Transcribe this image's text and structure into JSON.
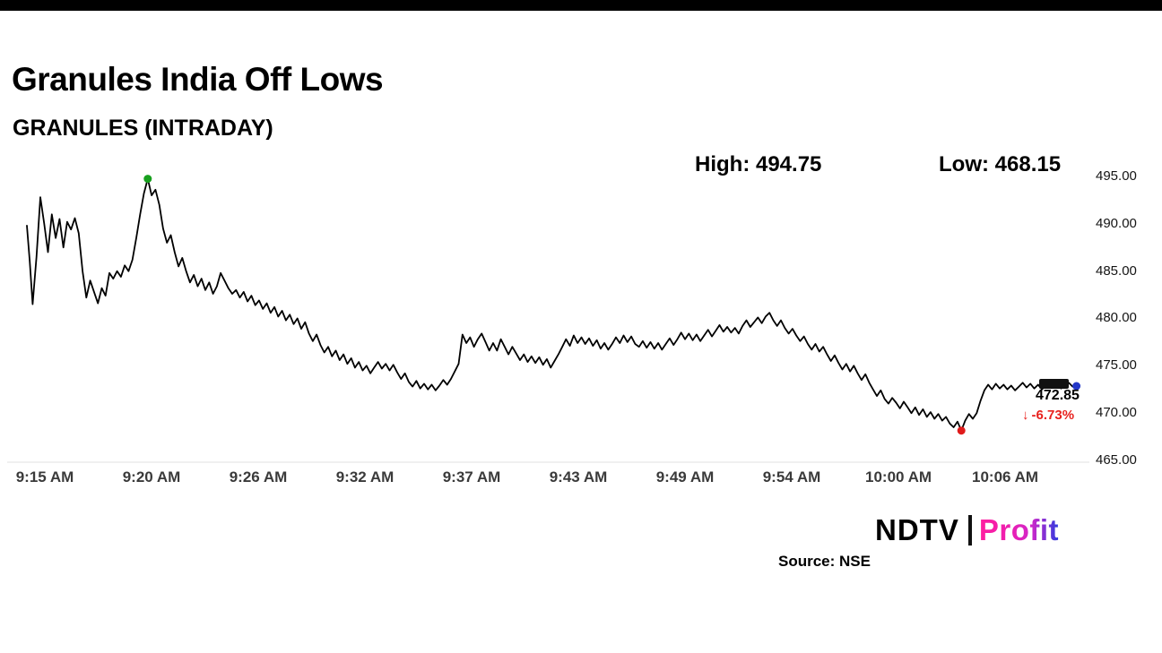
{
  "branding": {
    "ndtv": "NDTV",
    "separator": "|",
    "profit": "Profit"
  },
  "chart_data": {
    "type": "line",
    "title": "Granules India Off Lows",
    "subtitle": "GRANULES (INTRADAY)",
    "high_label": "High: 494.75",
    "low_label": "Low: 468.15",
    "high": 494.75,
    "low": 468.15,
    "last_price": 472.85,
    "last_price_text": "472.85",
    "change_arrow": "↓",
    "change_text": "-6.73%",
    "source": "Source: NSE",
    "line_color": "#000000",
    "change_color": "#e8211d",
    "ylim": [
      465,
      495
    ],
    "y_ticks": [
      "495.00",
      "490.00",
      "485.00",
      "480.00",
      "475.00",
      "470.00",
      "465.00"
    ],
    "x_ticks": [
      "9:15 AM",
      "9:20 AM",
      "9:26 AM",
      "9:32 AM",
      "9:37 AM",
      "9:43 AM",
      "9:49 AM",
      "9:54 AM",
      "10:00 AM",
      "10:06 AM"
    ],
    "x_unit": "minutes after 9:15 AM",
    "markers": [
      {
        "name": "high-point",
        "t": 6.3,
        "value": 494.75,
        "color": "#18a01e"
      },
      {
        "name": "low-point",
        "t": 48.7,
        "value": 468.15,
        "color": "#e01b1b"
      },
      {
        "name": "last-point",
        "t": 54.7,
        "value": 472.85,
        "color": "#2438c8"
      }
    ],
    "series": [
      {
        "name": "GRANULES",
        "points": [
          [
            0,
            489.8
          ],
          [
            0.15,
            486
          ],
          [
            0.3,
            481.5
          ],
          [
            0.5,
            486.5
          ],
          [
            0.7,
            492.8
          ],
          [
            0.9,
            490
          ],
          [
            1.1,
            487
          ],
          [
            1.3,
            491
          ],
          [
            1.5,
            488.5
          ],
          [
            1.7,
            490.5
          ],
          [
            1.9,
            487.5
          ],
          [
            2.1,
            490.2
          ],
          [
            2.3,
            489.4
          ],
          [
            2.5,
            490.6
          ],
          [
            2.7,
            489
          ],
          [
            2.9,
            485
          ],
          [
            3.1,
            482.2
          ],
          [
            3.3,
            484
          ],
          [
            3.5,
            482.8
          ],
          [
            3.7,
            481.6
          ],
          [
            3.9,
            483.2
          ],
          [
            4.1,
            482.4
          ],
          [
            4.3,
            484.8
          ],
          [
            4.5,
            484.2
          ],
          [
            4.7,
            485
          ],
          [
            4.9,
            484.4
          ],
          [
            5.1,
            485.6
          ],
          [
            5.3,
            485
          ],
          [
            5.5,
            486.2
          ],
          [
            5.7,
            488.5
          ],
          [
            5.9,
            491
          ],
          [
            6.1,
            493.2
          ],
          [
            6.3,
            494.75
          ],
          [
            6.5,
            493
          ],
          [
            6.7,
            493.6
          ],
          [
            6.9,
            492
          ],
          [
            7.1,
            489.5
          ],
          [
            7.3,
            488
          ],
          [
            7.5,
            488.8
          ],
          [
            7.7,
            487
          ],
          [
            7.9,
            485.5
          ],
          [
            8.1,
            486.4
          ],
          [
            8.3,
            485
          ],
          [
            8.5,
            483.8
          ],
          [
            8.7,
            484.6
          ],
          [
            8.9,
            483.4
          ],
          [
            9.1,
            484.2
          ],
          [
            9.3,
            483
          ],
          [
            9.5,
            483.8
          ],
          [
            9.7,
            482.6
          ],
          [
            9.9,
            483.4
          ],
          [
            10.1,
            484.8
          ],
          [
            10.3,
            484
          ],
          [
            10.5,
            483.2
          ],
          [
            10.7,
            482.6
          ],
          [
            10.9,
            483
          ],
          [
            11.1,
            482.2
          ],
          [
            11.3,
            482.8
          ],
          [
            11.5,
            481.8
          ],
          [
            11.7,
            482.4
          ],
          [
            11.9,
            481.4
          ],
          [
            12.1,
            481.9
          ],
          [
            12.3,
            481
          ],
          [
            12.5,
            481.6
          ],
          [
            12.7,
            480.6
          ],
          [
            12.9,
            481.2
          ],
          [
            13.1,
            480.2
          ],
          [
            13.3,
            480.8
          ],
          [
            13.5,
            479.8
          ],
          [
            13.7,
            480.4
          ],
          [
            13.9,
            479.4
          ],
          [
            14.1,
            480
          ],
          [
            14.3,
            478.9
          ],
          [
            14.5,
            479.6
          ],
          [
            14.7,
            478.4
          ],
          [
            14.9,
            477.6
          ],
          [
            15.1,
            478.3
          ],
          [
            15.3,
            477.2
          ],
          [
            15.5,
            476.4
          ],
          [
            15.7,
            477
          ],
          [
            15.9,
            476
          ],
          [
            16.1,
            476.6
          ],
          [
            16.3,
            475.6
          ],
          [
            16.5,
            476.2
          ],
          [
            16.7,
            475.2
          ],
          [
            16.9,
            475.8
          ],
          [
            17.1,
            474.8
          ],
          [
            17.3,
            475.4
          ],
          [
            17.5,
            474.5
          ],
          [
            17.7,
            475
          ],
          [
            17.9,
            474.2
          ],
          [
            18.1,
            474.8
          ],
          [
            18.3,
            475.4
          ],
          [
            18.5,
            474.7
          ],
          [
            18.7,
            475.2
          ],
          [
            18.9,
            474.5
          ],
          [
            19.1,
            475.1
          ],
          [
            19.3,
            474.3
          ],
          [
            19.5,
            473.6
          ],
          [
            19.7,
            474.2
          ],
          [
            19.9,
            473.3
          ],
          [
            20.1,
            472.8
          ],
          [
            20.3,
            473.4
          ],
          [
            20.5,
            472.6
          ],
          [
            20.7,
            473.1
          ],
          [
            20.9,
            472.5
          ],
          [
            21.1,
            473
          ],
          [
            21.3,
            472.4
          ],
          [
            21.5,
            472.9
          ],
          [
            21.7,
            473.5
          ],
          [
            21.9,
            473
          ],
          [
            22.1,
            473.6
          ],
          [
            22.3,
            474.4
          ],
          [
            22.5,
            475.2
          ],
          [
            22.7,
            478.3
          ],
          [
            22.9,
            477.4
          ],
          [
            23.1,
            478
          ],
          [
            23.3,
            477
          ],
          [
            23.5,
            477.8
          ],
          [
            23.7,
            478.4
          ],
          [
            23.9,
            477.5
          ],
          [
            24.1,
            476.6
          ],
          [
            24.3,
            477.4
          ],
          [
            24.5,
            476.6
          ],
          [
            24.7,
            477.8
          ],
          [
            24.9,
            477
          ],
          [
            25.1,
            476.2
          ],
          [
            25.3,
            477
          ],
          [
            25.5,
            476.3
          ],
          [
            25.7,
            475.6
          ],
          [
            25.9,
            476.2
          ],
          [
            26.1,
            475.4
          ],
          [
            26.3,
            476
          ],
          [
            26.5,
            475.3
          ],
          [
            26.7,
            475.9
          ],
          [
            26.9,
            475.1
          ],
          [
            27.1,
            475.7
          ],
          [
            27.3,
            474.8
          ],
          [
            27.5,
            475.5
          ],
          [
            27.7,
            476.2
          ],
          [
            27.9,
            477
          ],
          [
            28.1,
            477.8
          ],
          [
            28.3,
            477.1
          ],
          [
            28.5,
            478.2
          ],
          [
            28.7,
            477.4
          ],
          [
            28.9,
            478
          ],
          [
            29.1,
            477.3
          ],
          [
            29.3,
            477.9
          ],
          [
            29.5,
            477.1
          ],
          [
            29.7,
            477.7
          ],
          [
            29.9,
            476.8
          ],
          [
            30.1,
            477.4
          ],
          [
            30.3,
            476.7
          ],
          [
            30.5,
            477.3
          ],
          [
            30.7,
            478
          ],
          [
            30.9,
            477.4
          ],
          [
            31.1,
            478.2
          ],
          [
            31.3,
            477.5
          ],
          [
            31.5,
            478.1
          ],
          [
            31.7,
            477.3
          ],
          [
            31.9,
            477
          ],
          [
            32.1,
            477.6
          ],
          [
            32.3,
            476.9
          ],
          [
            32.5,
            477.5
          ],
          [
            32.7,
            476.8
          ],
          [
            32.9,
            477.4
          ],
          [
            33.1,
            476.7
          ],
          [
            33.3,
            477.3
          ],
          [
            33.5,
            477.9
          ],
          [
            33.7,
            477.2
          ],
          [
            33.9,
            477.8
          ],
          [
            34.1,
            478.5
          ],
          [
            34.3,
            477.8
          ],
          [
            34.5,
            478.4
          ],
          [
            34.7,
            477.7
          ],
          [
            34.9,
            478.3
          ],
          [
            35.1,
            477.6
          ],
          [
            35.3,
            478.2
          ],
          [
            35.5,
            478.8
          ],
          [
            35.7,
            478.1
          ],
          [
            35.9,
            478.7
          ],
          [
            36.1,
            479.3
          ],
          [
            36.3,
            478.6
          ],
          [
            36.5,
            479.1
          ],
          [
            36.7,
            478.5
          ],
          [
            36.9,
            479
          ],
          [
            37.1,
            478.4
          ],
          [
            37.3,
            479.2
          ],
          [
            37.5,
            479.8
          ],
          [
            37.7,
            479.1
          ],
          [
            37.9,
            479.6
          ],
          [
            38.1,
            480.1
          ],
          [
            38.3,
            479.5
          ],
          [
            38.5,
            480.2
          ],
          [
            38.7,
            480.6
          ],
          [
            38.9,
            479.8
          ],
          [
            39.1,
            479.2
          ],
          [
            39.3,
            479.8
          ],
          [
            39.5,
            479
          ],
          [
            39.7,
            478.4
          ],
          [
            39.9,
            478.9
          ],
          [
            40.1,
            478.2
          ],
          [
            40.3,
            477.6
          ],
          [
            40.5,
            478.1
          ],
          [
            40.7,
            477.3
          ],
          [
            40.9,
            476.7
          ],
          [
            41.1,
            477.3
          ],
          [
            41.3,
            476.5
          ],
          [
            41.5,
            477
          ],
          [
            41.7,
            476.2
          ],
          [
            41.9,
            475.5
          ],
          [
            42.1,
            476.1
          ],
          [
            42.3,
            475.3
          ],
          [
            42.5,
            474.6
          ],
          [
            42.7,
            475.2
          ],
          [
            42.9,
            474.4
          ],
          [
            43.1,
            475
          ],
          [
            43.3,
            474.2
          ],
          [
            43.5,
            473.5
          ],
          [
            43.7,
            474.1
          ],
          [
            43.9,
            473.2
          ],
          [
            44.1,
            472.5
          ],
          [
            44.3,
            471.8
          ],
          [
            44.5,
            472.4
          ],
          [
            44.7,
            471.5
          ],
          [
            44.9,
            471
          ],
          [
            45.1,
            471.6
          ],
          [
            45.3,
            471.1
          ],
          [
            45.5,
            470.5
          ],
          [
            45.7,
            471.2
          ],
          [
            45.9,
            470.6
          ],
          [
            46.1,
            470
          ],
          [
            46.3,
            470.6
          ],
          [
            46.5,
            469.8
          ],
          [
            46.7,
            470.4
          ],
          [
            46.9,
            469.6
          ],
          [
            47.1,
            470.1
          ],
          [
            47.3,
            469.4
          ],
          [
            47.5,
            469.9
          ],
          [
            47.7,
            469.2
          ],
          [
            47.9,
            469.6
          ],
          [
            48.1,
            468.9
          ],
          [
            48.3,
            468.5
          ],
          [
            48.5,
            469.1
          ],
          [
            48.7,
            468.15
          ],
          [
            48.9,
            469.2
          ],
          [
            49.1,
            469.9
          ],
          [
            49.3,
            469.4
          ],
          [
            49.5,
            470
          ],
          [
            49.7,
            471.3
          ],
          [
            49.9,
            472.4
          ],
          [
            50.1,
            473
          ],
          [
            50.3,
            472.5
          ],
          [
            50.5,
            473.1
          ],
          [
            50.7,
            472.6
          ],
          [
            50.9,
            473
          ],
          [
            51.1,
            472.5
          ],
          [
            51.3,
            472.9
          ],
          [
            51.5,
            472.4
          ],
          [
            51.7,
            472.8
          ],
          [
            51.9,
            473.2
          ],
          [
            52.1,
            472.7
          ],
          [
            52.3,
            473.1
          ],
          [
            52.5,
            472.6
          ],
          [
            52.7,
            473
          ],
          [
            52.9,
            472.5
          ],
          [
            53.1,
            472.9
          ],
          [
            53.3,
            473.2
          ],
          [
            53.5,
            472.7
          ],
          [
            53.7,
            473
          ],
          [
            53.9,
            472.6
          ],
          [
            54.1,
            472.9
          ],
          [
            54.3,
            473.2
          ],
          [
            54.5,
            472.8
          ],
          [
            54.7,
            472.85
          ]
        ]
      }
    ]
  }
}
